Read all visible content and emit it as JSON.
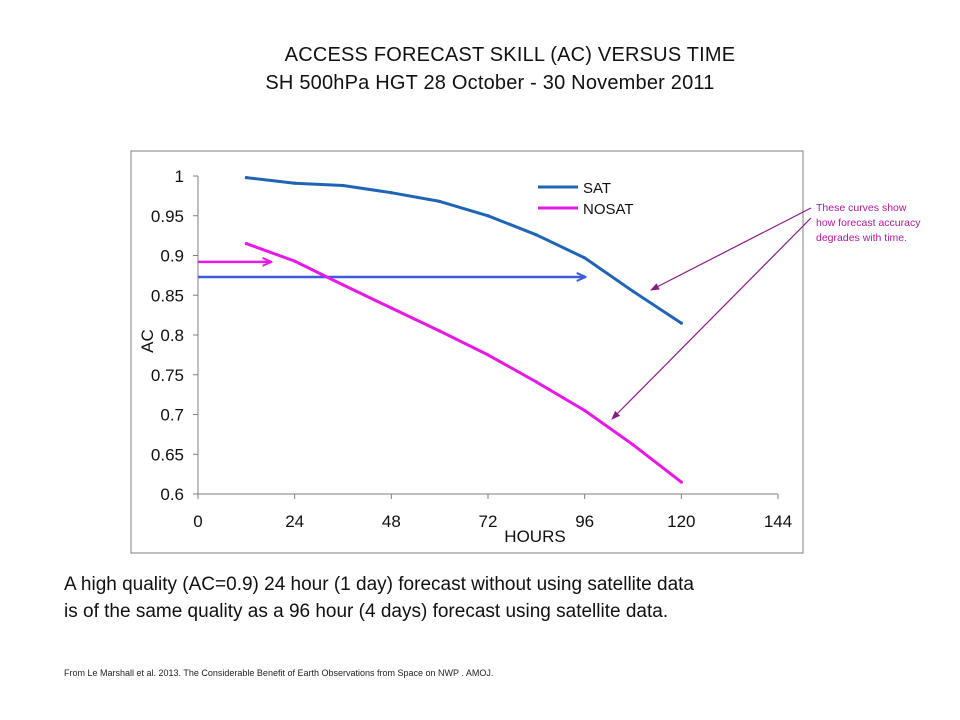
{
  "slide": {
    "title_line1": "ACCESS FORECAST SKILL (AC) VERSUS  TIME",
    "title_line2": "SH  500hPa HGT 28 October   - 30 November 2011",
    "caption_line1": "A high quality (AC=0.9) 24 hour (1 day) forecast without using satellite data",
    "caption_line2": "is of the same quality  as a 96 hour (4 days) forecast using satellite data.",
    "source": "From Le Marshall et al. 2013. The Considerable Benefit of Earth Observations from Space on  NWP . AMOJ.",
    "annotation": [
      "These curves show",
      "how forecast accuracy",
      " degrades with time."
    ]
  },
  "chart_data": {
    "type": "line",
    "xlabel": "HOURS",
    "ylabel": "AC",
    "xlim": [
      0,
      144
    ],
    "ylim": [
      0.6,
      1.0
    ],
    "x_ticks": [
      "0",
      "24",
      "48",
      "72",
      "96",
      "120",
      "144"
    ],
    "y_ticks": [
      "0.6",
      "0.65",
      "0.7",
      "0.75",
      "0.8",
      "0.85",
      "0.9",
      "0.95",
      "1"
    ],
    "grid": false,
    "legend_position": "top-right",
    "series": [
      {
        "name": "SAT",
        "color": "#1f64b5",
        "x": [
          12,
          24,
          36,
          48,
          60,
          72,
          84,
          96,
          108,
          120
        ],
        "y": [
          0.998,
          0.991,
          0.988,
          0.979,
          0.968,
          0.95,
          0.926,
          0.897,
          0.855,
          0.815
        ]
      },
      {
        "name": "NOSAT",
        "color": "#e619e6",
        "x": [
          12,
          24,
          36,
          48,
          60,
          72,
          84,
          96,
          108,
          120
        ],
        "y": [
          0.915,
          0.893,
          0.863,
          0.834,
          0.805,
          0.775,
          0.741,
          0.705,
          0.662,
          0.615
        ]
      }
    ],
    "markers": [
      {
        "kind": "arrow",
        "color": "#e619e6",
        "y": 0.892,
        "x_from": 0,
        "x_to": 18
      },
      {
        "kind": "arrow",
        "color": "#3b5bd9",
        "y": 0.873,
        "x_from": 0,
        "x_to": 96
      }
    ]
  },
  "colors": {
    "annotation": "#b3199c"
  }
}
